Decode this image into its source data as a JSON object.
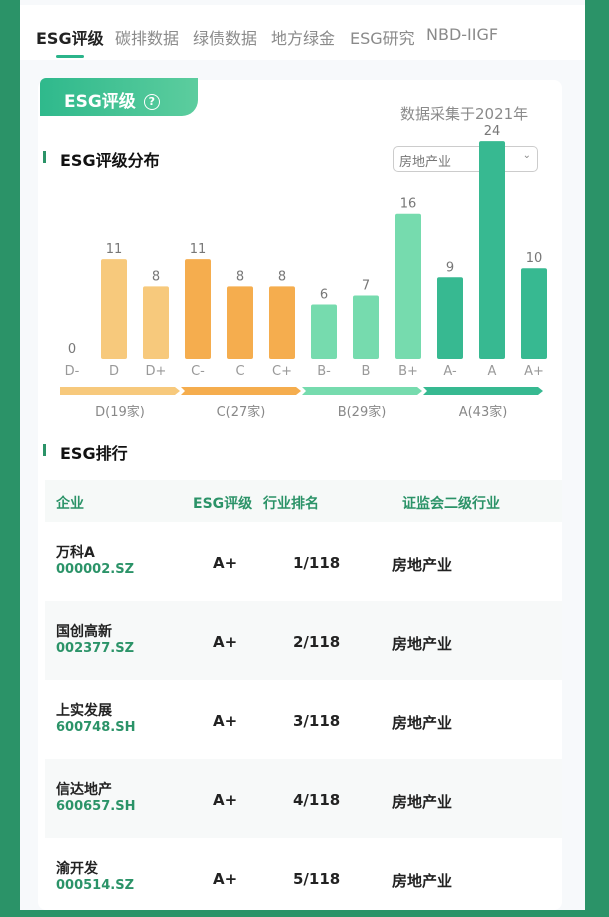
{
  "tabs": [
    "ESG评级",
    "碳排数据",
    "绿债数据",
    "地方绿金",
    "ESG研究",
    "NBD-IIGF"
  ],
  "active_tab": 0,
  "card": {
    "badge": "ESG评级",
    "help_icon": "question-circle-icon",
    "collected": "数据采集于2021年"
  },
  "distribution": {
    "title": "ESG评级分布",
    "industry_select": "房地产业"
  },
  "chart_data": {
    "type": "bar",
    "categories": [
      "D-",
      "D",
      "D+",
      "C-",
      "C",
      "C+",
      "B-",
      "B",
      "B+",
      "A-",
      "A",
      "A+"
    ],
    "values": [
      0,
      11,
      8,
      11,
      8,
      8,
      6,
      7,
      16,
      9,
      24,
      10
    ],
    "groups": [
      {
        "label": "D(19家)",
        "color": "#f7c97c"
      },
      {
        "label": "C(27家)",
        "color": "#f5ad4e"
      },
      {
        "label": "B(29家)",
        "color": "#76dbae"
      },
      {
        "label": "A(43家)",
        "color": "#37b991"
      }
    ]
  },
  "ranking": {
    "title": "ESG排行",
    "headers": [
      "企业",
      "ESG评级",
      "行业排名",
      "证监会二级行业"
    ],
    "rows": [
      {
        "name": "万科A",
        "code": "000002.SZ",
        "rating": "A+",
        "rank": "1/118",
        "industry": "房地产业"
      },
      {
        "name": "国创高新",
        "code": "002377.SZ",
        "rating": "A+",
        "rank": "2/118",
        "industry": "房地产业"
      },
      {
        "name": "上实发展",
        "code": "600748.SH",
        "rating": "A+",
        "rank": "3/118",
        "industry": "房地产业"
      },
      {
        "name": "信达地产",
        "code": "600657.SH",
        "rating": "A+",
        "rank": "4/118",
        "industry": "房地产业"
      },
      {
        "name": "渝开发",
        "code": "000514.SZ",
        "rating": "A+",
        "rank": "5/118",
        "industry": "房地产业"
      }
    ]
  }
}
